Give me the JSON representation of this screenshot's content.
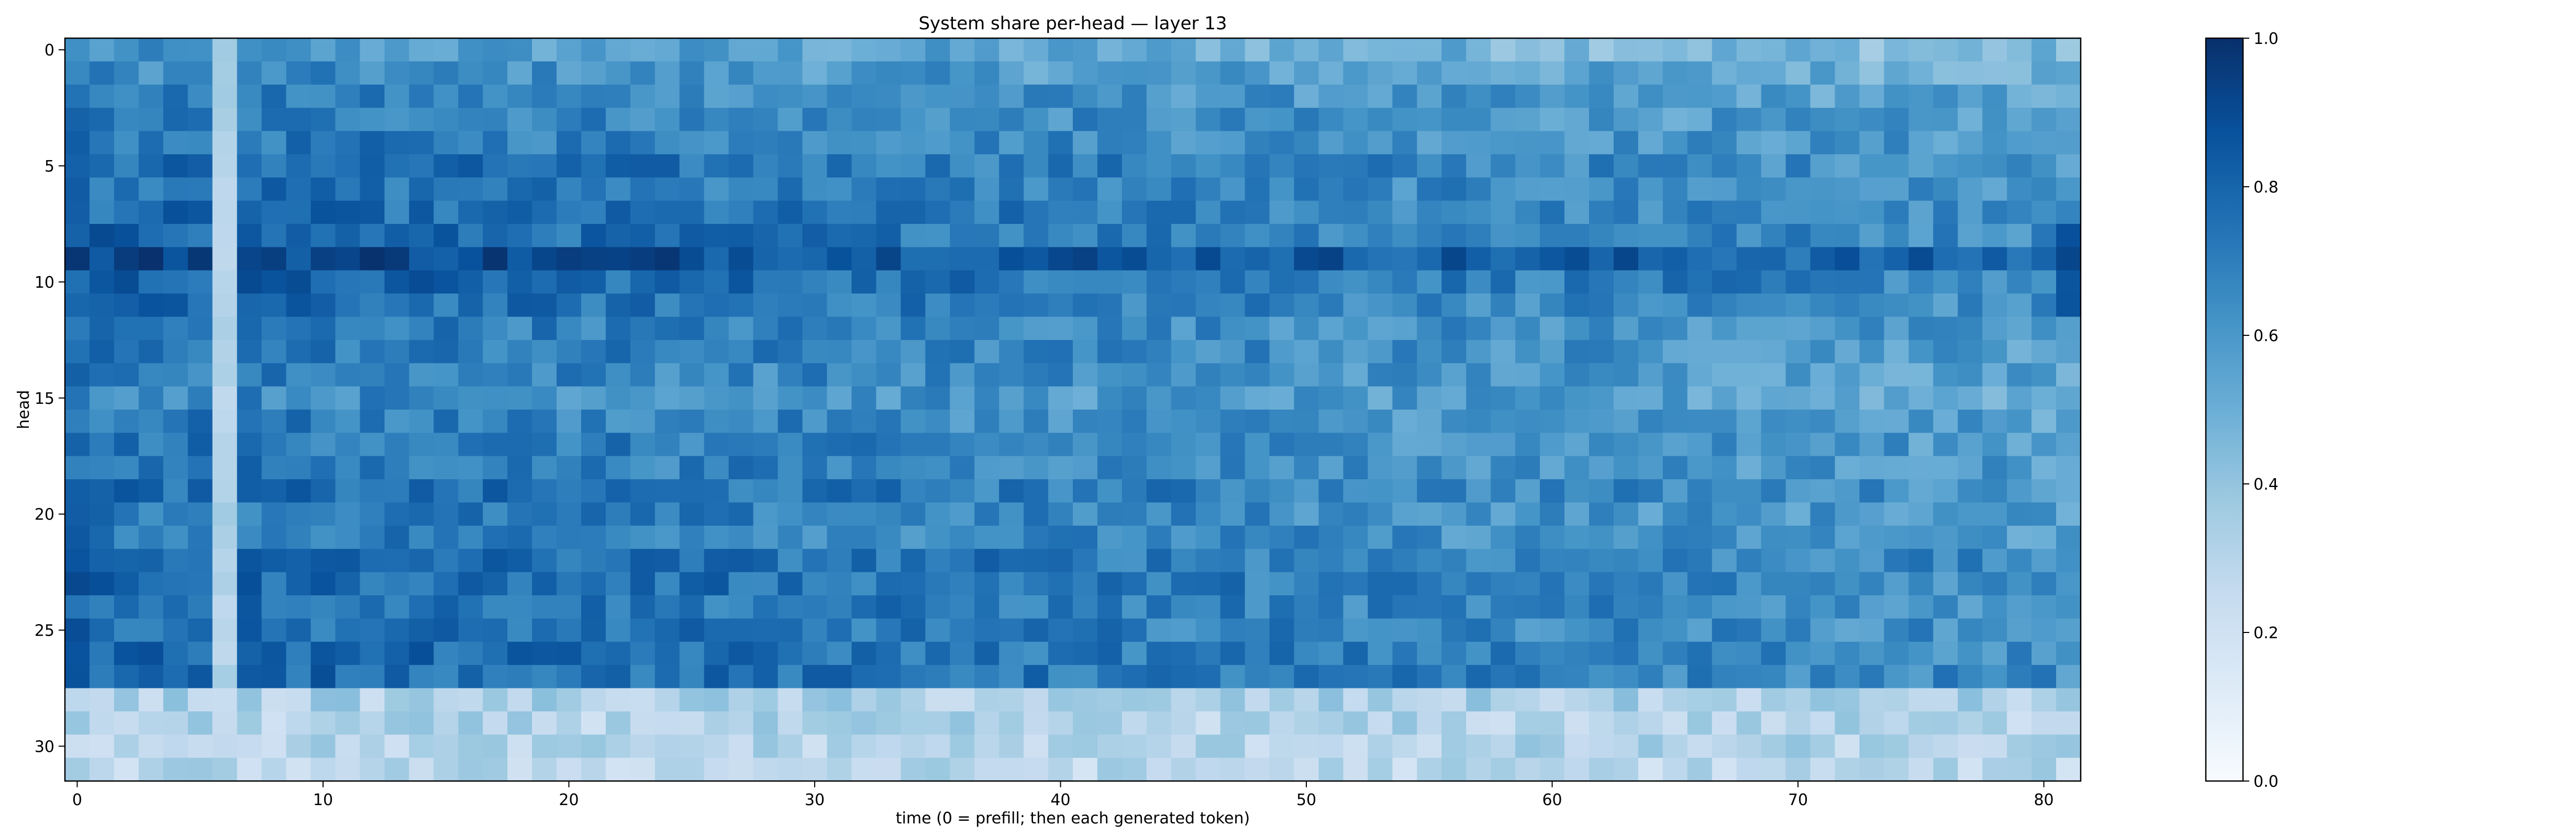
{
  "chart_data": {
    "type": "heatmap",
    "title": "System share per-head — layer 13",
    "xlabel": "time (0 = prefill; then each generated token)",
    "ylabel": "head",
    "x_range": [
      0,
      81
    ],
    "y_range": [
      0,
      31
    ],
    "x_ticks": [
      0,
      10,
      20,
      30,
      40,
      50,
      60,
      70,
      80
    ],
    "y_ticks": [
      0,
      5,
      10,
      15,
      20,
      25,
      30
    ],
    "colormap": "Blues",
    "colorbar": {
      "min": 0.0,
      "max": 1.0,
      "ticks": [
        "0.0",
        "0.2",
        "0.4",
        "0.6",
        "0.8",
        "1.0"
      ]
    },
    "n_heads": 32,
    "n_steps": 82,
    "column_overrides": [
      {
        "x": 6,
        "value": 0.32,
        "rows": [
          0,
          27
        ],
        "note": "light vertical band"
      },
      {
        "x": 81,
        "value": 0.9,
        "rows": [
          8,
          11
        ]
      }
    ],
    "row_profile": [
      0.52,
      0.58,
      0.62,
      0.64,
      0.66,
      0.7,
      0.68,
      0.7,
      0.72,
      0.86,
      0.74,
      0.7,
      0.66,
      0.66,
      0.64,
      0.6,
      0.64,
      0.66,
      0.66,
      0.7,
      0.66,
      0.66,
      0.72,
      0.72,
      0.7,
      0.7,
      0.72,
      0.72,
      0.32,
      0.3,
      0.3,
      0.28
    ],
    "time_profile_note": "early steps (0-30) darker, later steps lighter; bottom 4 heads (28-31) light across time"
  }
}
